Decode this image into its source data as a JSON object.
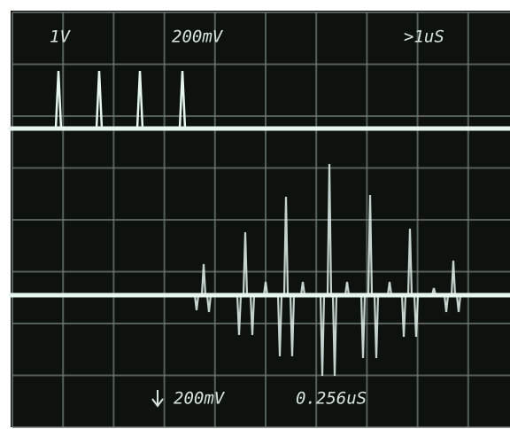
{
  "screen": {
    "channel_labels": [
      "1V",
      "200mV",
      ">1uS"
    ],
    "readout_labels": [
      "200mV",
      "0.256uS"
    ]
  }
}
